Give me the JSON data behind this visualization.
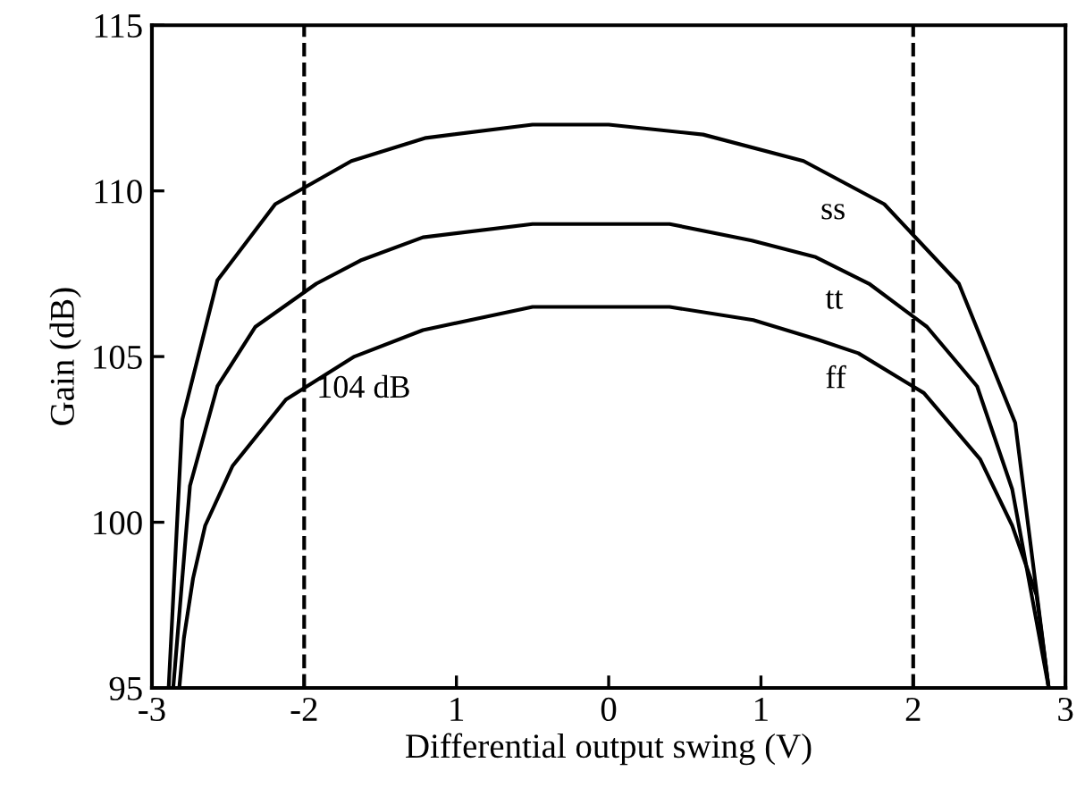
{
  "chart_data": {
    "type": "line",
    "xlabel": "Differential output swing (V)",
    "ylabel": "Gain (dB)",
    "xlim": [
      -3,
      3
    ],
    "xticks": [
      -3,
      -2,
      {
        "value": -1,
        "label": "1"
      },
      0,
      1,
      2,
      3
    ],
    "ylim": [
      95,
      115
    ],
    "yticks": [
      95,
      100,
      105,
      110,
      115
    ],
    "grid": false,
    "legend": false,
    "marker": "none",
    "line_style": "solid",
    "series": [
      {
        "name": "ss",
        "color": "#000000",
        "x": [
          -2.89,
          -2.8,
          -2.57,
          -2.19,
          -1.69,
          -1.2,
          -0.5,
          0.0,
          0.62,
          1.28,
          1.81,
          2.3,
          2.67,
          2.89
        ],
        "values": [
          95,
          103.1,
          107.3,
          109.6,
          110.9,
          111.6,
          112.0,
          112.0,
          111.7,
          110.9,
          109.6,
          107.2,
          103.0,
          95
        ]
      },
      {
        "name": "tt",
        "color": "#000000",
        "x": [
          -2.86,
          -2.75,
          -2.57,
          -2.32,
          -1.92,
          -1.63,
          -1.22,
          -0.5,
          0.4,
          0.94,
          1.36,
          1.71,
          2.09,
          2.42,
          2.65,
          2.89
        ],
        "values": [
          95,
          101.1,
          104.1,
          105.9,
          107.2,
          107.9,
          108.6,
          109.0,
          109.0,
          108.5,
          108.0,
          107.2,
          105.9,
          104.1,
          101.0,
          95
        ]
      },
      {
        "name": "ff",
        "color": "#000000",
        "x": [
          -2.82,
          -2.79,
          -2.73,
          -2.65,
          -2.47,
          -2.12,
          -1.67,
          -1.22,
          -0.5,
          0.4,
          0.95,
          1.38,
          1.64,
          2.07,
          2.44,
          2.65,
          2.81,
          2.89
        ],
        "values": [
          95,
          96.5,
          98.3,
          99.9,
          101.7,
          103.7,
          105.0,
          105.8,
          106.5,
          106.5,
          106.1,
          105.5,
          105.1,
          103.9,
          101.9,
          99.9,
          97.8,
          95
        ]
      }
    ],
    "ref_lines": [
      {
        "axis": "x",
        "value": -2,
        "color": "#000000",
        "line_style": "dashed"
      },
      {
        "axis": "x",
        "value": 2,
        "color": "#000000",
        "line_style": "dashed"
      }
    ],
    "annotations": [
      {
        "text": "104 dB",
        "x": -2,
        "y": 104
      }
    ]
  }
}
